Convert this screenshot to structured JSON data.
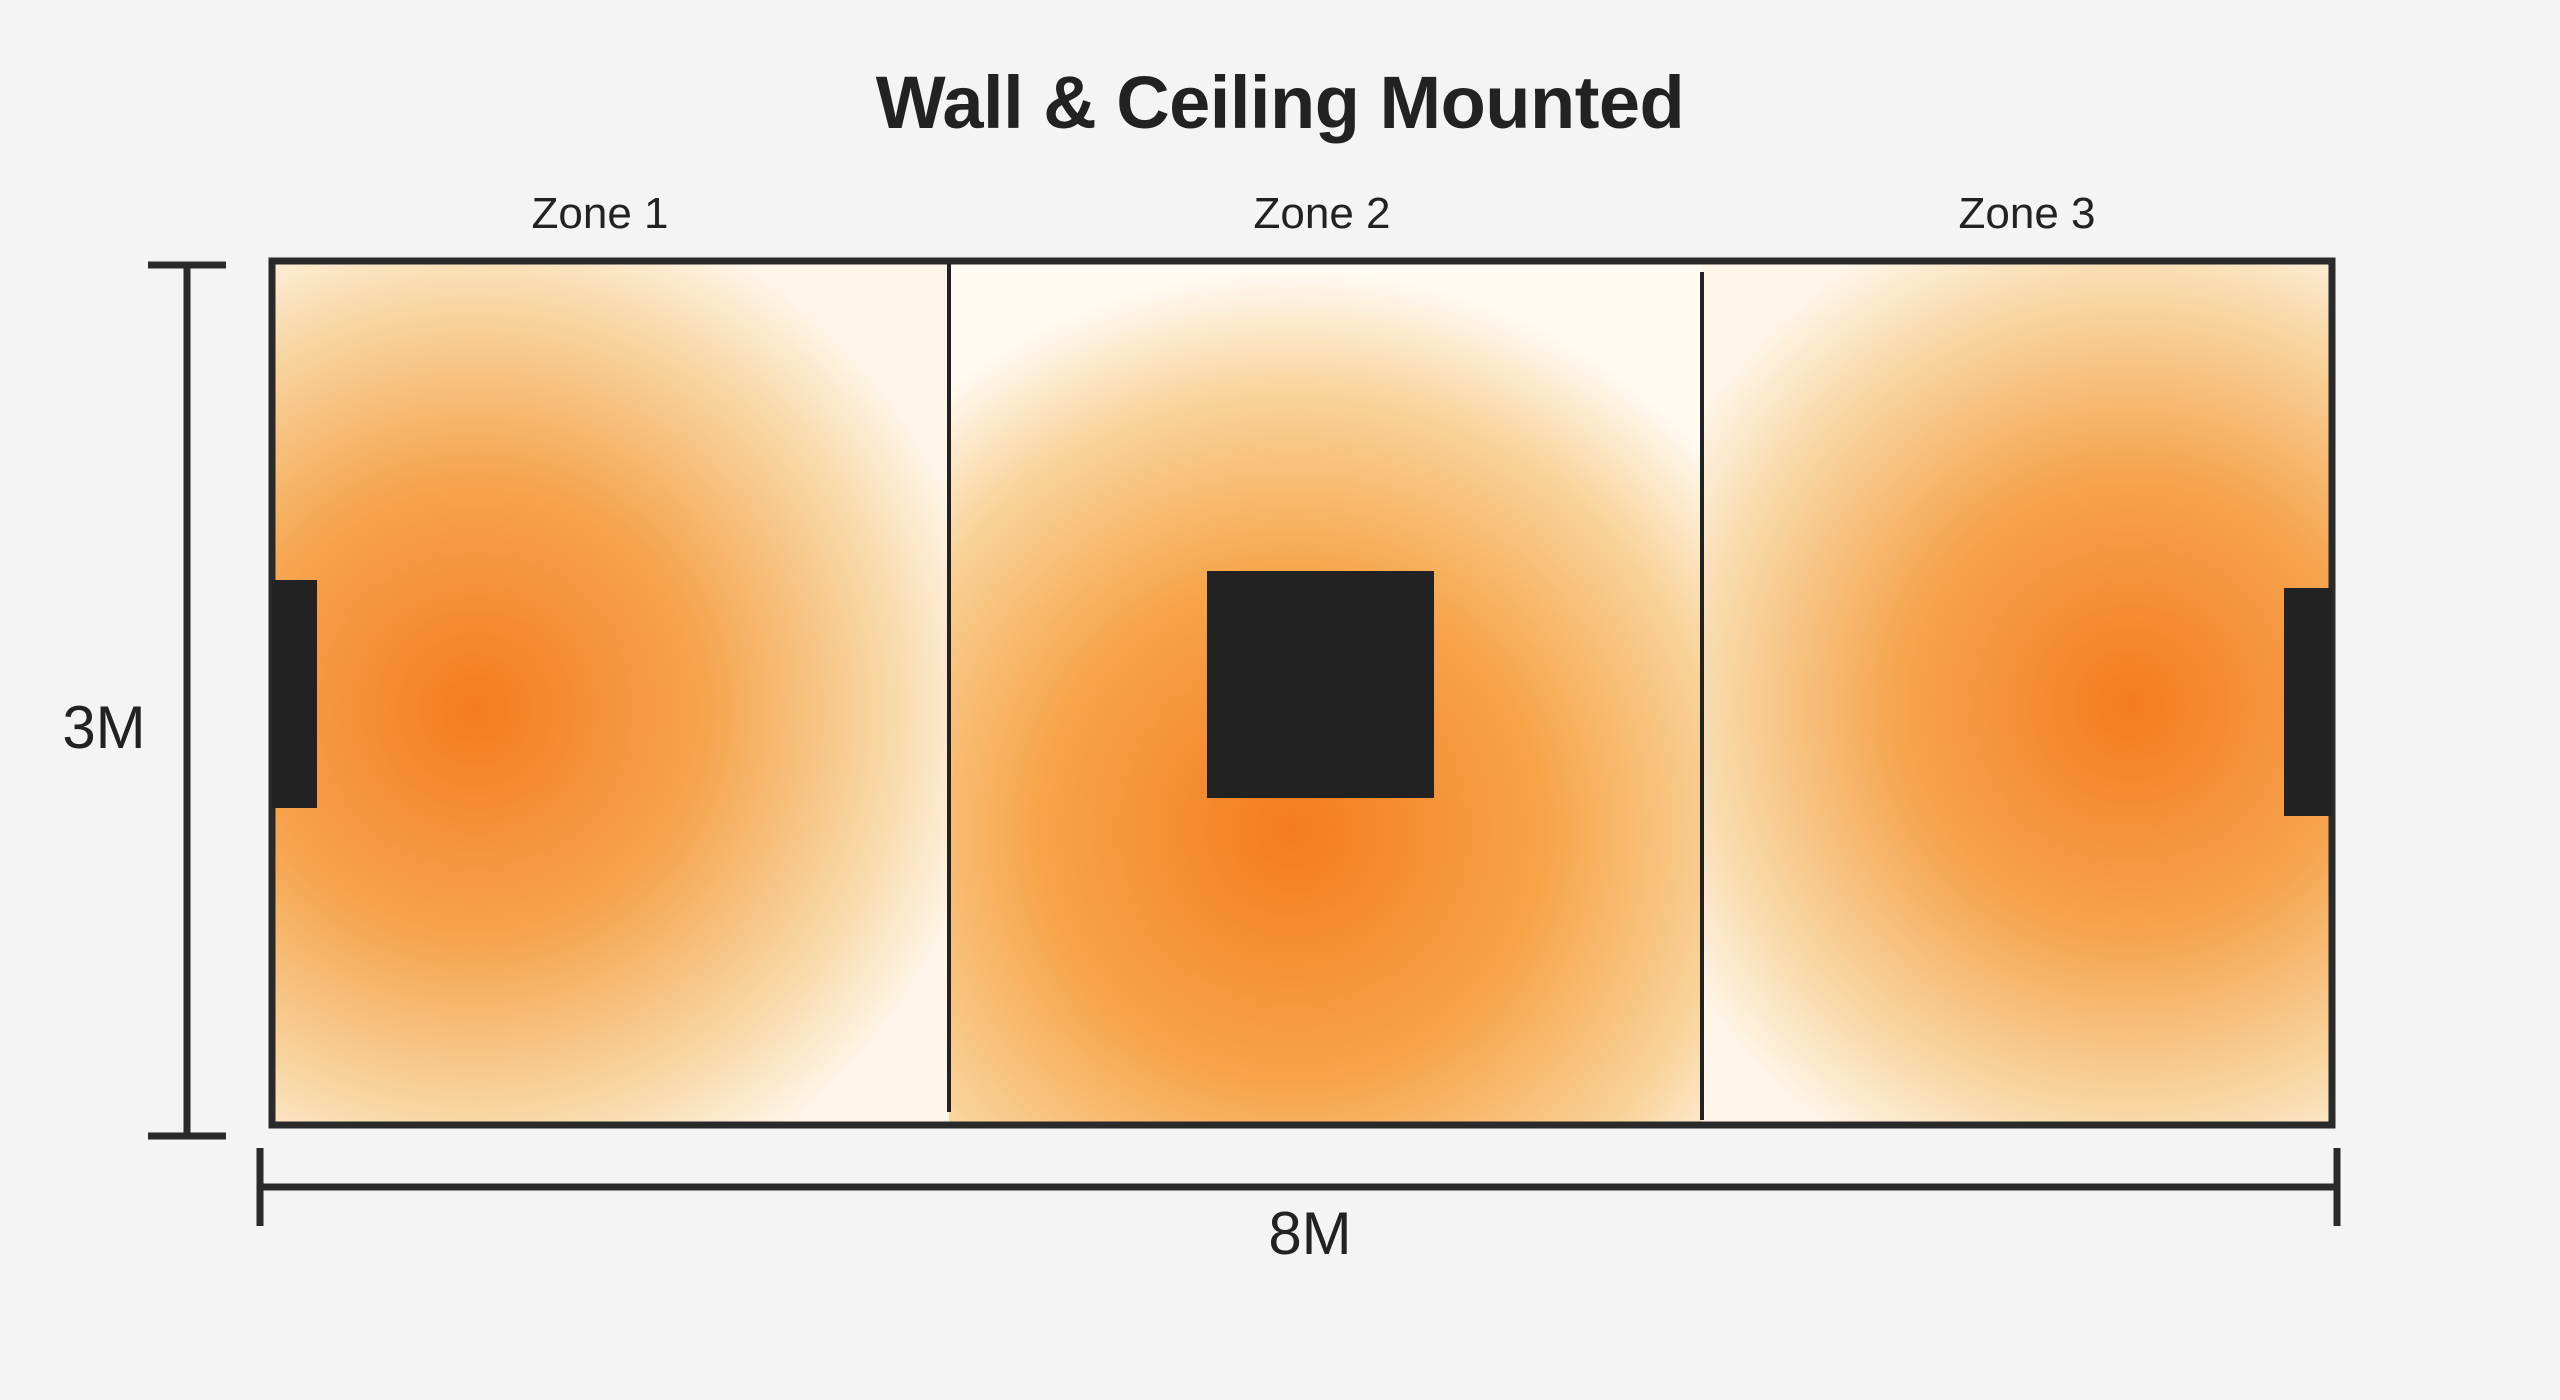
{
  "title": "Wall & Ceiling Mounted",
  "zones": [
    {
      "label": "Zone 1",
      "mount": "wall",
      "heater_side": "left"
    },
    {
      "label": "Zone 2",
      "mount": "ceiling",
      "heater_side": "center"
    },
    {
      "label": "Zone 3",
      "mount": "wall",
      "heater_side": "right"
    }
  ],
  "dimensions": {
    "height_label": "3M",
    "width_label": "8M"
  },
  "colors": {
    "background": "#f4f4f4",
    "heat_core": "#f47b20",
    "heat_edge": "#fff7ec",
    "outline": "#222222",
    "heater": "#222222"
  }
}
